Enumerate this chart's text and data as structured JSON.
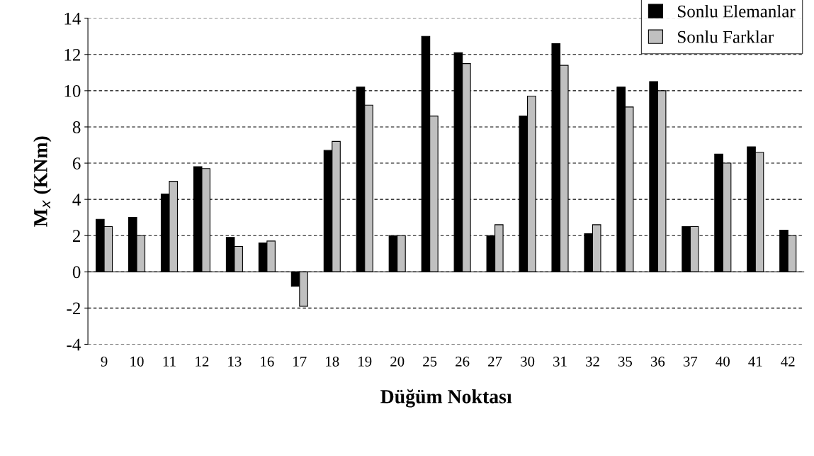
{
  "chart_data": {
    "type": "bar",
    "xlabel": "Düğüm Noktası",
    "ylabel": "M$_{x}$ (KNm)",
    "categories": [
      "9",
      "10",
      "11",
      "12",
      "13",
      "16",
      "17",
      "18",
      "19",
      "20",
      "25",
      "26",
      "27",
      "30",
      "31",
      "32",
      "35",
      "36",
      "37",
      "40",
      "41",
      "42"
    ],
    "series": [
      {
        "name": "Sonlu Elemanlar",
        "color": "#000000",
        "values": [
          2.9,
          3.0,
          4.3,
          5.8,
          1.9,
          1.6,
          -0.8,
          6.7,
          10.2,
          2.0,
          13.0,
          12.1,
          2.0,
          8.6,
          12.6,
          2.1,
          10.2,
          10.5,
          2.5,
          6.5,
          6.9,
          2.3
        ]
      },
      {
        "name": "Sonlu Farklar",
        "color": "#c0c0c0",
        "values": [
          2.5,
          2.0,
          5.0,
          5.7,
          1.4,
          1.7,
          -1.9,
          7.2,
          9.2,
          2.0,
          8.6,
          11.5,
          2.6,
          9.7,
          11.4,
          2.6,
          9.1,
          10.0,
          2.5,
          6.0,
          6.6,
          2.0
        ]
      }
    ],
    "ylim": [
      -4,
      14
    ],
    "yticks": [
      {
        "value": -4,
        "label": "-4"
      },
      {
        "value": -2,
        "label": "-2"
      },
      0,
      2,
      4,
      6,
      8,
      10,
      12,
      14
    ],
    "grid": "y",
    "legend": "top right"
  }
}
